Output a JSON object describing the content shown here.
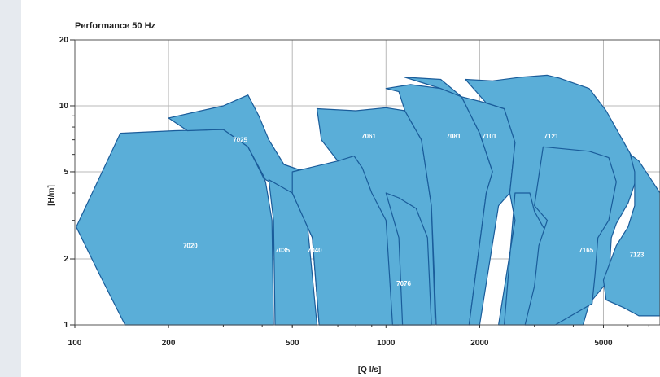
{
  "chart_data": {
    "type": "area",
    "title": "Performance 50 Hz",
    "xlabel": "[Q l/s]",
    "ylabel": "[H/m]",
    "xscale": "log",
    "yscale": "log",
    "xlim": [
      100,
      7600
    ],
    "ylim": [
      1,
      20
    ],
    "x_ticks": [
      {
        "value": 100,
        "label": "100"
      },
      {
        "value": 200,
        "label": "200"
      },
      {
        "value": 500,
        "label": "500"
      },
      {
        "value": 1000,
        "label": "1000"
      },
      {
        "value": 2000,
        "label": "2000"
      },
      {
        "value": 5000,
        "label": "5000"
      }
    ],
    "y_ticks": [
      {
        "value": 1,
        "label": "1"
      },
      {
        "value": 2,
        "label": "2"
      },
      {
        "value": 5,
        "label": "5"
      },
      {
        "value": 10,
        "label": "10"
      },
      {
        "value": 20,
        "label": "20"
      }
    ],
    "grid": true,
    "fill_color": "#5aaed8",
    "edge_color": "#1a5c9a",
    "series": [
      {
        "name": "7020",
        "label_at": [
          235,
          2.3
        ],
        "points": [
          [
            101,
            2.8
          ],
          [
            140,
            7.5
          ],
          [
            210,
            7.7
          ],
          [
            300,
            7.8
          ],
          [
            360,
            6.5
          ],
          [
            410,
            4.5
          ],
          [
            430,
            3
          ],
          [
            435,
            1
          ],
          [
            145,
            1
          ],
          [
            120,
            1.7
          ],
          [
            101,
            2.8
          ]
        ]
      },
      {
        "name": "7025",
        "label_at": [
          340,
          7
        ],
        "points": [
          [
            200,
            8.8
          ],
          [
            300,
            10
          ],
          [
            360,
            11.2
          ],
          [
            390,
            9
          ],
          [
            420,
            7
          ],
          [
            470,
            5.4
          ],
          [
            550,
            5
          ],
          [
            700,
            3.9
          ],
          [
            900,
            3
          ],
          [
            1050,
            2.2
          ],
          [
            1100,
            1
          ],
          [
            610,
            1
          ],
          [
            580,
            2.5
          ],
          [
            500,
            4
          ],
          [
            410,
            4.6
          ],
          [
            360,
            6.5
          ],
          [
            300,
            7.8
          ],
          [
            230,
            7.7
          ],
          [
            200,
            8.8
          ]
        ]
      },
      {
        "name": "7035",
        "label_at": [
          465,
          2.2
        ],
        "points": [
          [
            420,
            4.6
          ],
          [
            500,
            4
          ],
          [
            560,
            2.8
          ],
          [
            600,
            1
          ],
          [
            440,
            1
          ],
          [
            435,
            3
          ],
          [
            420,
            4.6
          ]
        ]
      },
      {
        "name": "7040",
        "label_at": [
          590,
          2.2
        ],
        "points": [
          [
            500,
            5
          ],
          [
            700,
            5.6
          ],
          [
            800,
            6
          ],
          [
            850,
            5.2
          ],
          [
            1000,
            4
          ],
          [
            1100,
            2.5
          ],
          [
            1130,
            1
          ],
          [
            610,
            1
          ],
          [
            580,
            2.5
          ],
          [
            500,
            4
          ],
          [
            500,
            5
          ]
        ]
      },
      {
        "name": "7061",
        "label_at": [
          880,
          7.3
        ],
        "points": [
          [
            600,
            9.7
          ],
          [
            800,
            9.5
          ],
          [
            1000,
            9.8
          ],
          [
            1150,
            9.5
          ],
          [
            1300,
            7
          ],
          [
            1400,
            3.5
          ],
          [
            1440,
            1
          ],
          [
            1050,
            1
          ],
          [
            1000,
            3
          ],
          [
            900,
            4
          ],
          [
            840,
            5.2
          ],
          [
            790,
            5.9
          ],
          [
            700,
            5.6
          ],
          [
            620,
            7
          ],
          [
            600,
            9.7
          ]
        ]
      },
      {
        "name": "7076",
        "label_at": [
          1140,
          1.55
        ],
        "points": [
          [
            1000,
            4
          ],
          [
            1100,
            3.8
          ],
          [
            1250,
            3.4
          ],
          [
            1360,
            2.5
          ],
          [
            1400,
            1
          ],
          [
            1130,
            1
          ],
          [
            1100,
            2.5
          ],
          [
            1000,
            4
          ]
        ]
      },
      {
        "name": "7081",
        "label_at": [
          1650,
          7.3
        ],
        "points": [
          [
            1000,
            12
          ],
          [
            1200,
            12.5
          ],
          [
            1500,
            12
          ],
          [
            1750,
            11
          ],
          [
            2000,
            7.5
          ],
          [
            2200,
            5
          ],
          [
            2100,
            4
          ],
          [
            1850,
            1
          ],
          [
            1450,
            1
          ],
          [
            1400,
            3.5
          ],
          [
            1300,
            7
          ],
          [
            1150,
            9.5
          ],
          [
            1100,
            11.6
          ],
          [
            1000,
            12
          ]
        ]
      },
      {
        "name": "7101",
        "label_at": [
          2150,
          7.3
        ],
        "points": [
          [
            1150,
            13.5
          ],
          [
            1500,
            13.2
          ],
          [
            1750,
            11
          ],
          [
            2100,
            10.3
          ],
          [
            2400,
            9.7
          ],
          [
            2600,
            6.8
          ],
          [
            2500,
            4
          ],
          [
            2300,
            3.5
          ],
          [
            2000,
            1
          ],
          [
            1850,
            1
          ],
          [
            2100,
            4
          ],
          [
            2200,
            5
          ],
          [
            2000,
            7.5
          ],
          [
            1750,
            11
          ],
          [
            1500,
            12
          ],
          [
            1150,
            13.5
          ]
        ]
      },
      {
        "name": "7121",
        "label_at": [
          3400,
          7.3
        ],
        "points": [
          [
            1800,
            13.2
          ],
          [
            2200,
            13
          ],
          [
            2700,
            13.5
          ],
          [
            3300,
            13.8
          ],
          [
            3600,
            13.4
          ],
          [
            4500,
            12
          ],
          [
            5100,
            9.5
          ],
          [
            5600,
            7.5
          ],
          [
            6200,
            5.8
          ],
          [
            6500,
            5
          ],
          [
            6000,
            3.6
          ],
          [
            5500,
            2.9
          ],
          [
            5300,
            2.5
          ],
          [
            5200,
            1.6
          ],
          [
            4500,
            1.25
          ],
          [
            4300,
            1
          ],
          [
            2400,
            1
          ],
          [
            2600,
            4
          ],
          [
            2900,
            4
          ],
          [
            3000,
            3.3
          ],
          [
            3200,
            2.8
          ],
          [
            3500,
            2.4
          ],
          [
            3800,
            2.2
          ],
          [
            4400,
            1.7
          ],
          [
            4300,
            1.3
          ],
          [
            3000,
            1
          ],
          [
            2300,
            1
          ],
          [
            2600,
            3
          ],
          [
            2500,
            4
          ],
          [
            2600,
            6.8
          ],
          [
            2400,
            9.7
          ],
          [
            2100,
            10.3
          ],
          [
            1800,
            13.2
          ]
        ]
      },
      {
        "name": "7165",
        "label_at": [
          4400,
          2.2
        ],
        "points": [
          [
            3200,
            6.5
          ],
          [
            4500,
            6.2
          ],
          [
            5200,
            5.8
          ],
          [
            5500,
            4.5
          ],
          [
            5200,
            3
          ],
          [
            4800,
            2.5
          ],
          [
            4700,
            1.7
          ],
          [
            4600,
            1.25
          ],
          [
            3500,
            1
          ],
          [
            2800,
            1
          ],
          [
            3000,
            1.5
          ],
          [
            3100,
            2.3
          ],
          [
            3300,
            3
          ],
          [
            3000,
            3.5
          ],
          [
            3200,
            6.5
          ]
        ]
      },
      {
        "name": "7123",
        "label_at": [
          6400,
          2.1
        ],
        "points": [
          [
            6100,
            6
          ],
          [
            6500,
            5.6
          ],
          [
            7200,
            4.5
          ],
          [
            7600,
            4
          ],
          [
            7600,
            1.1
          ],
          [
            6500,
            1.1
          ],
          [
            5800,
            1.2
          ],
          [
            5100,
            1.3
          ],
          [
            5000,
            1.6
          ],
          [
            5500,
            2.3
          ],
          [
            6000,
            2.8
          ],
          [
            6300,
            3.5
          ],
          [
            6300,
            5
          ],
          [
            6100,
            6
          ]
        ]
      }
    ]
  }
}
